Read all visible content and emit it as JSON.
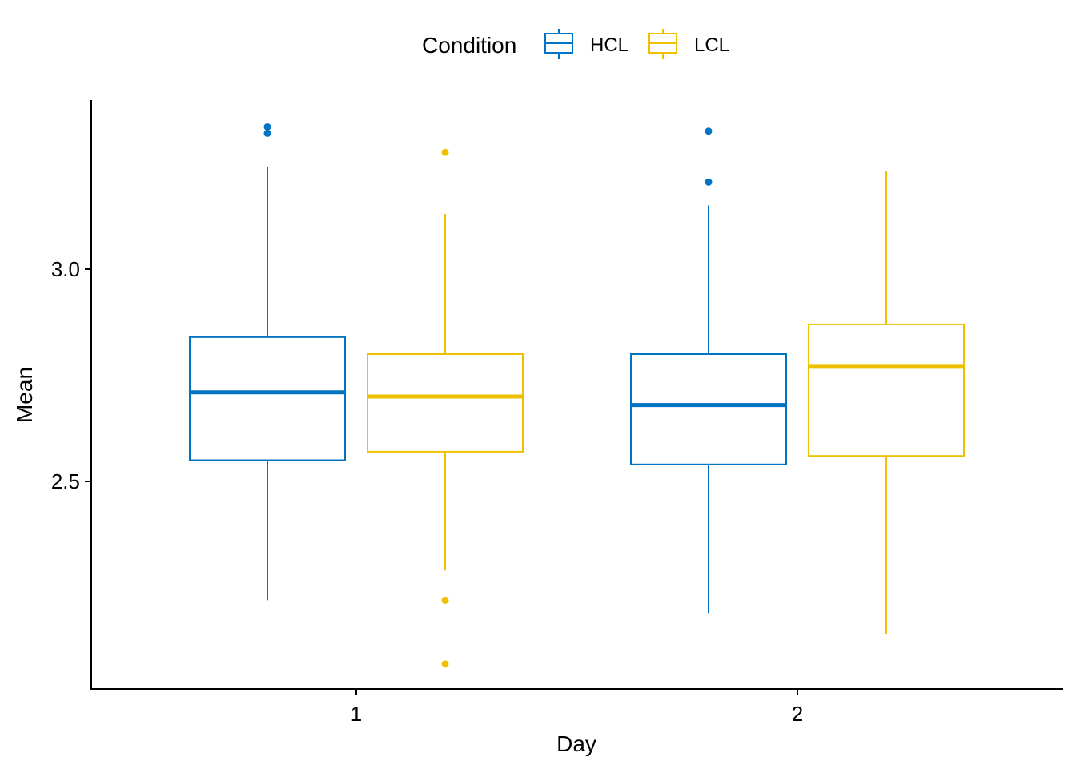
{
  "chart_data": {
    "type": "boxplot",
    "title": "",
    "xlabel": "Day",
    "ylabel": "Mean",
    "categories": [
      "1",
      "2"
    ],
    "ylim": [
      2.05,
      3.4
    ],
    "yticks": [
      2.5,
      3.0
    ],
    "ytick_labels": [
      "2.5",
      "3.0"
    ],
    "grid": false,
    "legend": {
      "title": "Condition",
      "placement": "top",
      "entries": [
        "HCL",
        "LCL"
      ]
    },
    "series": [
      {
        "name": "HCL",
        "color": "#0073C2",
        "boxes": [
          {
            "category": "1",
            "whisker_low": 2.22,
            "q1": 2.55,
            "median": 2.71,
            "q3": 2.84,
            "whisker_high": 3.24,
            "outliers": [
              3.32,
              3.335
            ]
          },
          {
            "category": "2",
            "whisker_low": 2.19,
            "q1": 2.54,
            "median": 2.68,
            "q3": 2.8,
            "whisker_high": 3.15,
            "outliers": [
              3.205,
              3.325
            ]
          }
        ]
      },
      {
        "name": "LCL",
        "color": "#EFC000",
        "boxes": [
          {
            "category": "1",
            "whisker_low": 2.29,
            "q1": 2.57,
            "median": 2.7,
            "q3": 2.8,
            "whisker_high": 3.13,
            "outliers": [
              2.22,
              2.07,
              3.275
            ]
          },
          {
            "category": "2",
            "whisker_low": 2.14,
            "q1": 2.56,
            "median": 2.77,
            "q3": 2.87,
            "whisker_high": 3.23,
            "outliers": []
          }
        ]
      }
    ]
  }
}
